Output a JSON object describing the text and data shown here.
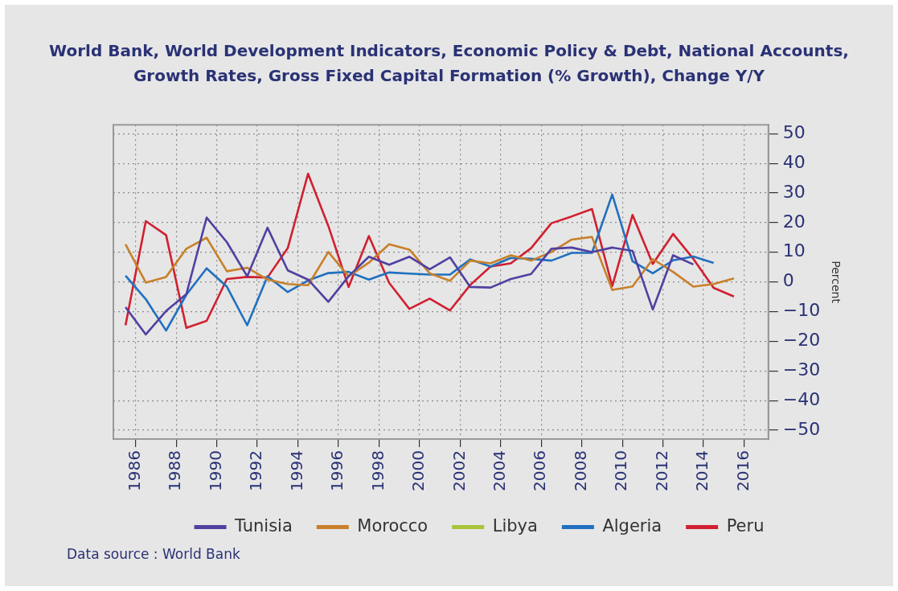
{
  "chart_data": {
    "type": "line",
    "title": "World Bank, World Development Indicators, Economic Policy & Debt, National Accounts, Growth Rates, Gross Fixed Capital Formation (% Growth), Change Y/Y",
    "ylabel": "Percent",
    "x": [
      1985.5,
      1986.5,
      1987.5,
      1988.5,
      1989.5,
      1990.5,
      1991.5,
      1992.5,
      1993.5,
      1994.5,
      1995.5,
      1996.5,
      1997.5,
      1998.5,
      1999.5,
      2000.5,
      2001.5,
      2002.5,
      2003.5,
      2004.5,
      2005.5,
      2006.5,
      2007.5,
      2008.5,
      2009.5,
      2010.5,
      2011.5,
      2012.5,
      2013.5,
      2014.5,
      2015.5
    ],
    "series": [
      {
        "name": "Tunisia",
        "color": "#5040a0",
        "values": [
          -8.5,
          -17.7,
          -9.8,
          -4.1,
          21.7,
          13.4,
          1.9,
          18.3,
          3.9,
          0.8,
          -6.7,
          1.9,
          8.5,
          5.8,
          8.5,
          4.3,
          8.3,
          -1.7,
          -1.9,
          1.0,
          2.7,
          11.2,
          11.6,
          10.1,
          11.6,
          10.5,
          -9.3,
          9.0,
          5.9,
          null,
          null
        ]
      },
      {
        "name": "Morocco",
        "color": "#c8802a",
        "values": [
          12.7,
          -0.2,
          1.7,
          11.2,
          14.9,
          3.6,
          4.8,
          0.8,
          -0.7,
          -1.1,
          10.1,
          1.9,
          6.5,
          12.7,
          10.9,
          2.9,
          0.4,
          7.2,
          6.3,
          9.0,
          7.2,
          10.1,
          14.3,
          15.2,
          -2.7,
          -1.5,
          7.7,
          3.4,
          -1.6,
          -0.7,
          1.2
        ]
      },
      {
        "name": "Libya",
        "color": "#a8c43a",
        "values": [
          null,
          null,
          null,
          null,
          null,
          null,
          null,
          null,
          null,
          null,
          null,
          null,
          null,
          null,
          null,
          null,
          null,
          null,
          null,
          null,
          null,
          null,
          null,
          null,
          null,
          null,
          null,
          null,
          null,
          null,
          null
        ]
      },
      {
        "name": "Algeria",
        "color": "#2070c0",
        "values": [
          2.1,
          -5.8,
          -16.4,
          -4.3,
          4.6,
          -1.6,
          -14.6,
          1.9,
          -3.4,
          0.5,
          3.0,
          3.4,
          0.8,
          3.2,
          2.8,
          2.5,
          2.5,
          7.6,
          5.2,
          8.1,
          7.8,
          7.2,
          9.8,
          9.8,
          29.5,
          7.0,
          2.9,
          7.3,
          8.6,
          6.4,
          null
        ]
      },
      {
        "name": "Peru",
        "color": "#d02030",
        "values": [
          -14.6,
          20.5,
          15.8,
          -15.5,
          -13.1,
          1.0,
          1.7,
          1.5,
          11.4,
          36.5,
          18.9,
          -1.7,
          15.5,
          -0.3,
          -9.1,
          -5.6,
          -9.6,
          -1.0,
          5.2,
          6.3,
          11.4,
          19.8,
          22.1,
          24.6,
          -1.4,
          22.6,
          6.1,
          16.2,
          7.8,
          -2.0,
          -4.9
        ]
      }
    ],
    "xlim": [
      1984.9,
      2017.2
    ],
    "xticks": [
      1986,
      1988,
      1990,
      1992,
      1994,
      1996,
      1998,
      2000,
      2002,
      2004,
      2006,
      2008,
      2010,
      2012,
      2014,
      2016
    ],
    "ylim": [
      -53,
      53
    ],
    "yticks": [
      -50,
      -40,
      -30,
      -20,
      -10,
      0,
      10,
      20,
      30,
      40,
      50
    ],
    "grid": true,
    "legend": "bottom",
    "marker": "none",
    "line_style": "solid",
    "annotations": [
      "Data source : World Bank"
    ]
  }
}
